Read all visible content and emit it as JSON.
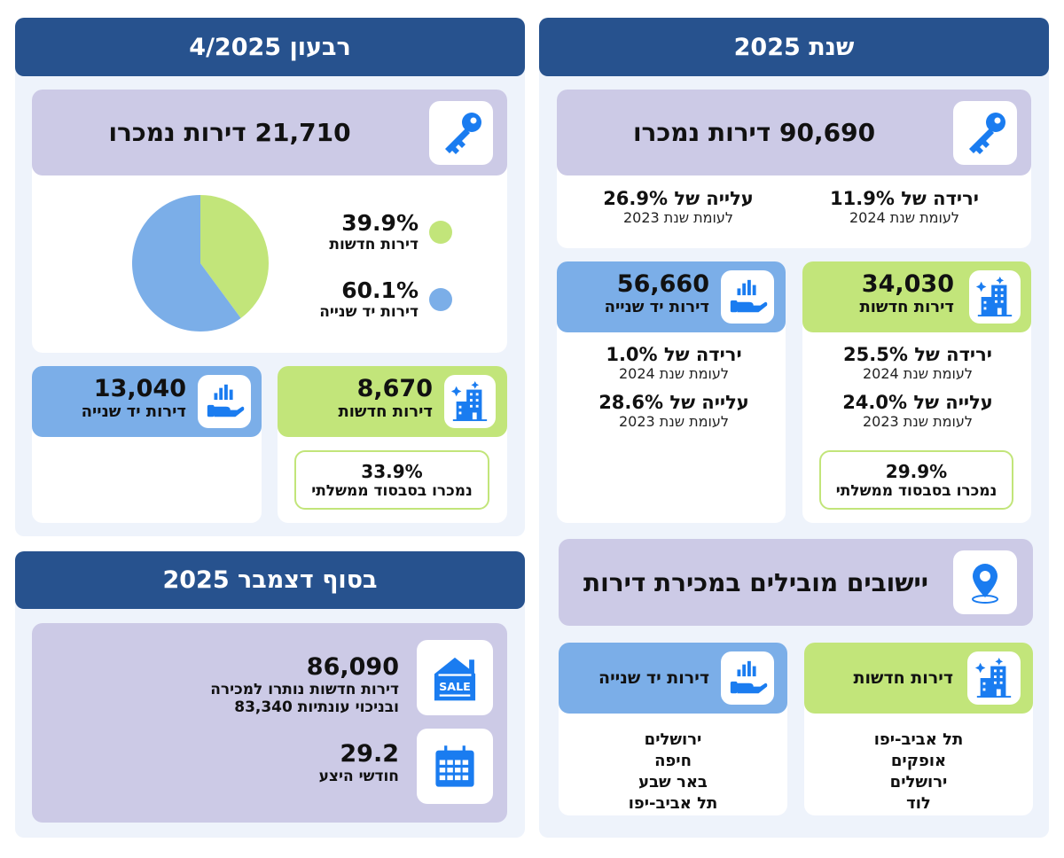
{
  "year": {
    "title": "שנת 2025",
    "sold": "90,690 דירות נמכרו",
    "stats": [
      {
        "main": "ירידה של 11.9%",
        "sub": "לעומת שנת 2024"
      },
      {
        "main": "עלייה של 26.9%",
        "sub": "לעומת שנת 2023"
      }
    ],
    "new": {
      "value": "34,030",
      "label": "דירות חדשות",
      "stats": [
        {
          "main": "ירידה של 25.5%",
          "sub": "לעומת שנת 2024"
        },
        {
          "main": "עלייה של 24.0%",
          "sub": "לעומת שנת 2023"
        }
      ],
      "subsidy_pct": "29.9%",
      "subsidy_label": "נמכרו בסבסוד ממשלתי"
    },
    "used": {
      "value": "56,660",
      "label": "דירות יד שנייה",
      "stats": [
        {
          "main": "ירידה של 1.0%",
          "sub": "לעומת שנת 2024"
        },
        {
          "main": "עלייה של 28.6%",
          "sub": "לעומת שנת 2023"
        }
      ]
    },
    "leading_title": "יישובים מובילים במכירת דירות",
    "leading_new": {
      "label": "דירות חדשות",
      "cities": [
        "תל אביב-יפו",
        "אופקים",
        "ירושלים",
        "לוד"
      ]
    },
    "leading_used": {
      "label": "דירות יד שנייה",
      "cities": [
        "ירושלים",
        "חיפה",
        "באר שבע",
        "תל אביב-יפו"
      ]
    }
  },
  "quarter": {
    "title": "רבעון 4/2025",
    "sold": "21,710 דירות נמכרו",
    "legend": [
      {
        "pct": "39.9%",
        "label": "דירות חדשות",
        "color": "#c2e57a"
      },
      {
        "pct": "60.1%",
        "label": "דירות יד שנייה",
        "color": "#7baee8"
      }
    ],
    "new": {
      "value": "8,670",
      "label": "דירות חדשות",
      "subsidy_pct": "33.9%",
      "subsidy_label": "נמכרו בסבסוד ממשלתי"
    },
    "used": {
      "value": "13,040",
      "label": "דירות יד שנייה"
    }
  },
  "chart_data": {
    "type": "pie",
    "categories": [
      "דירות חדשות",
      "דירות יד שנייה"
    ],
    "values": [
      39.9,
      60.1
    ],
    "colors": [
      "#c2e57a",
      "#7baee8"
    ]
  },
  "december": {
    "title": "בסוף דצמבר 2025",
    "inventory_value": "86,090",
    "inventory_label1": "דירות חדשות נותרו למכירה",
    "inventory_label2": "ובניכוי עונתיות 83,340",
    "months_value": "29.2",
    "months_label": "חודשי היצע"
  },
  "colors": {
    "header": "#27528e",
    "lavender": "#cccae6",
    "green": "#c2e57a",
    "blue": "#7baee8",
    "icon": "#1a7cf0"
  }
}
